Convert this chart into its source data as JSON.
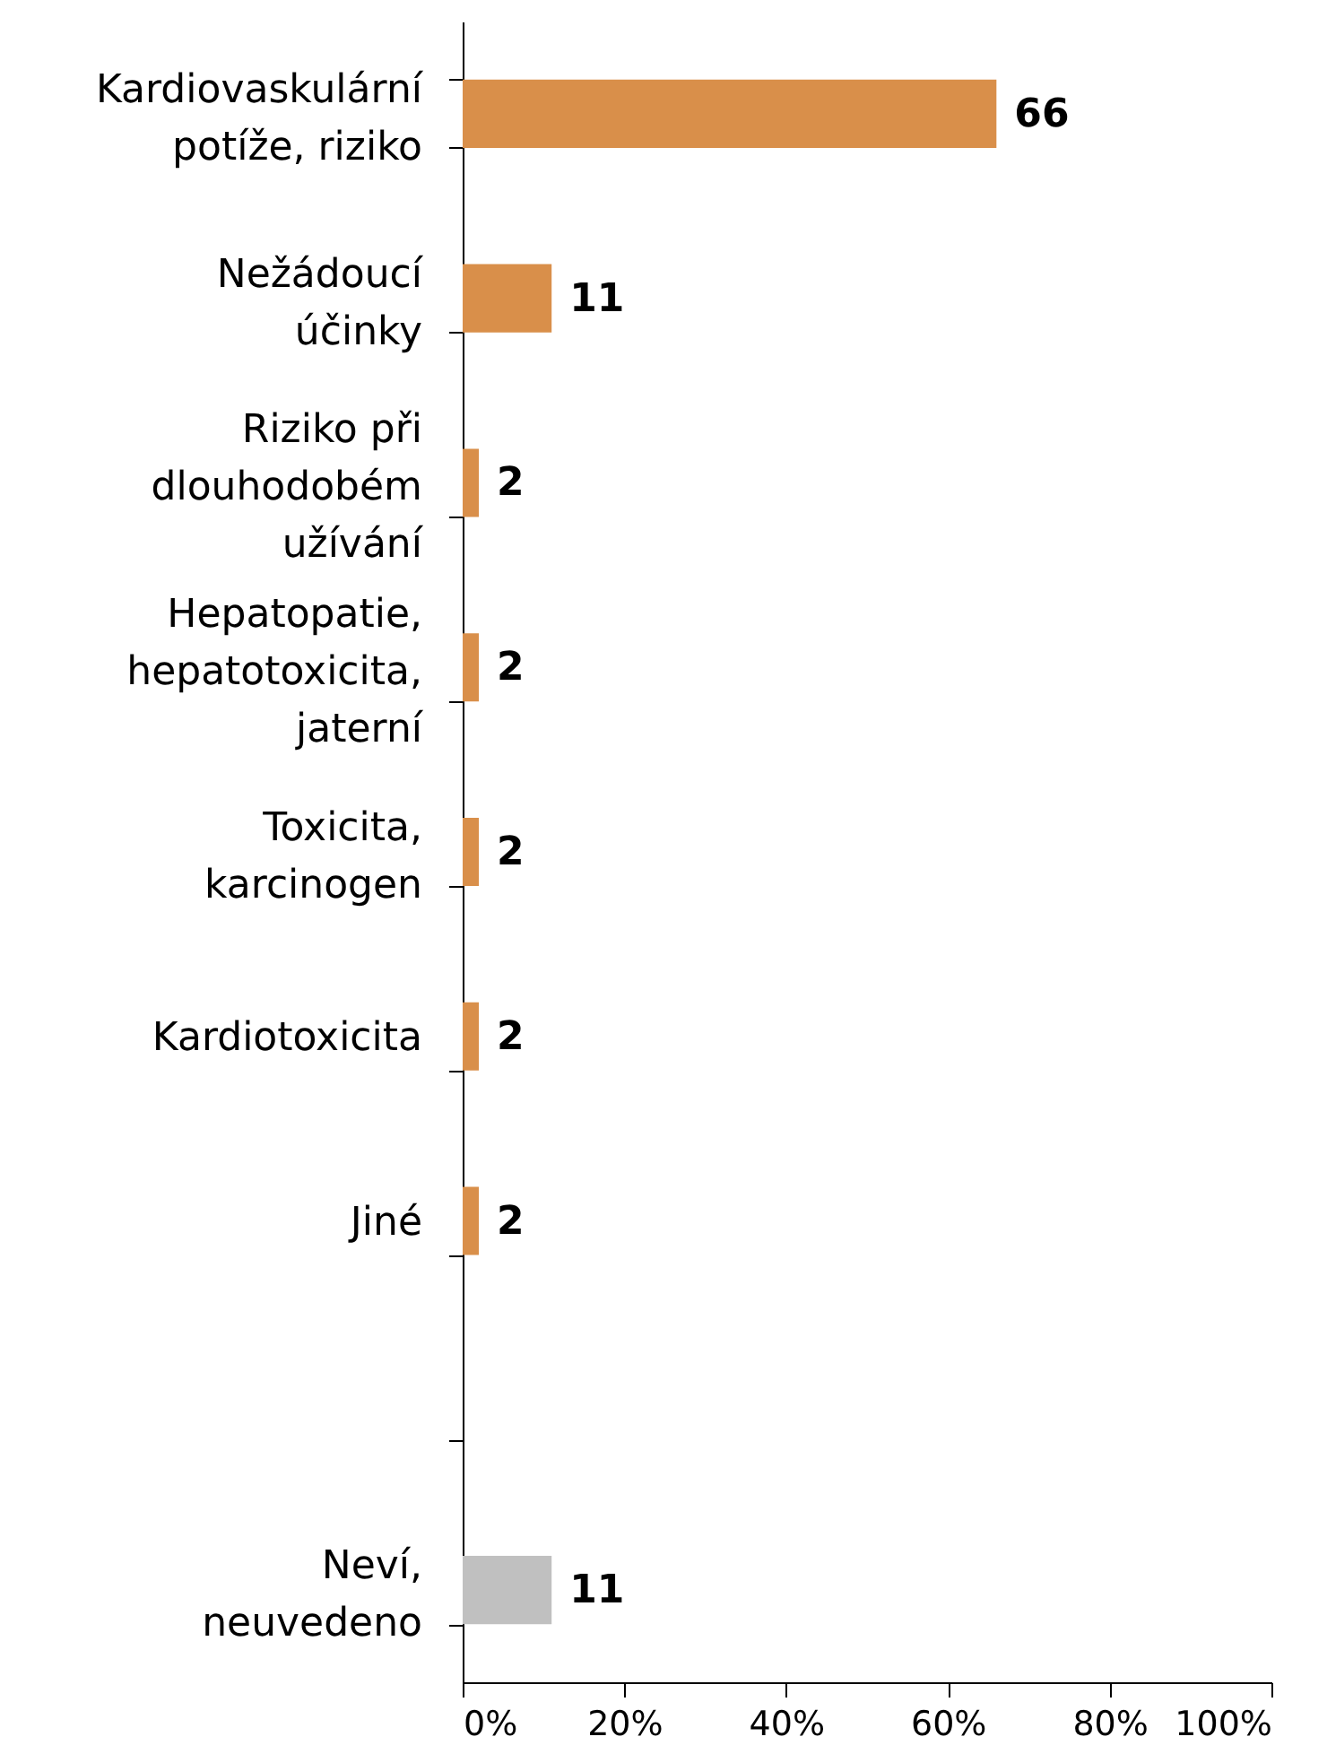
{
  "chart_data": {
    "type": "bar",
    "orientation": "horizontal",
    "categories": [
      "Kardiovaskulární potíže, riziko",
      "Nežádoucí účinky",
      "Riziko při dlouhodobém užívání",
      "Hepatopatie, hepatotoxicita, jaterní",
      "Toxicita, karcinogen",
      "Kardiotoxicita",
      "Jiné",
      null,
      "Neví, neuvedeno"
    ],
    "values": [
      66,
      11,
      2,
      2,
      2,
      2,
      2,
      null,
      11
    ],
    "colors": [
      "#d98f4a",
      "#d98f4a",
      "#d98f4a",
      "#d98f4a",
      "#d98f4a",
      "#d98f4a",
      "#d98f4a",
      null,
      "#c0c0c0"
    ],
    "xlim": [
      0,
      100
    ],
    "xticks": [
      {
        "value": 0,
        "label": "0%"
      },
      {
        "value": 20,
        "label": "20%"
      },
      {
        "value": 40,
        "label": "40%"
      },
      {
        "value": 60,
        "label": "60%"
      },
      {
        "value": 80,
        "label": "80%"
      },
      {
        "value": 100,
        "label": "100%"
      }
    ],
    "data_labels": true,
    "grid": false
  }
}
